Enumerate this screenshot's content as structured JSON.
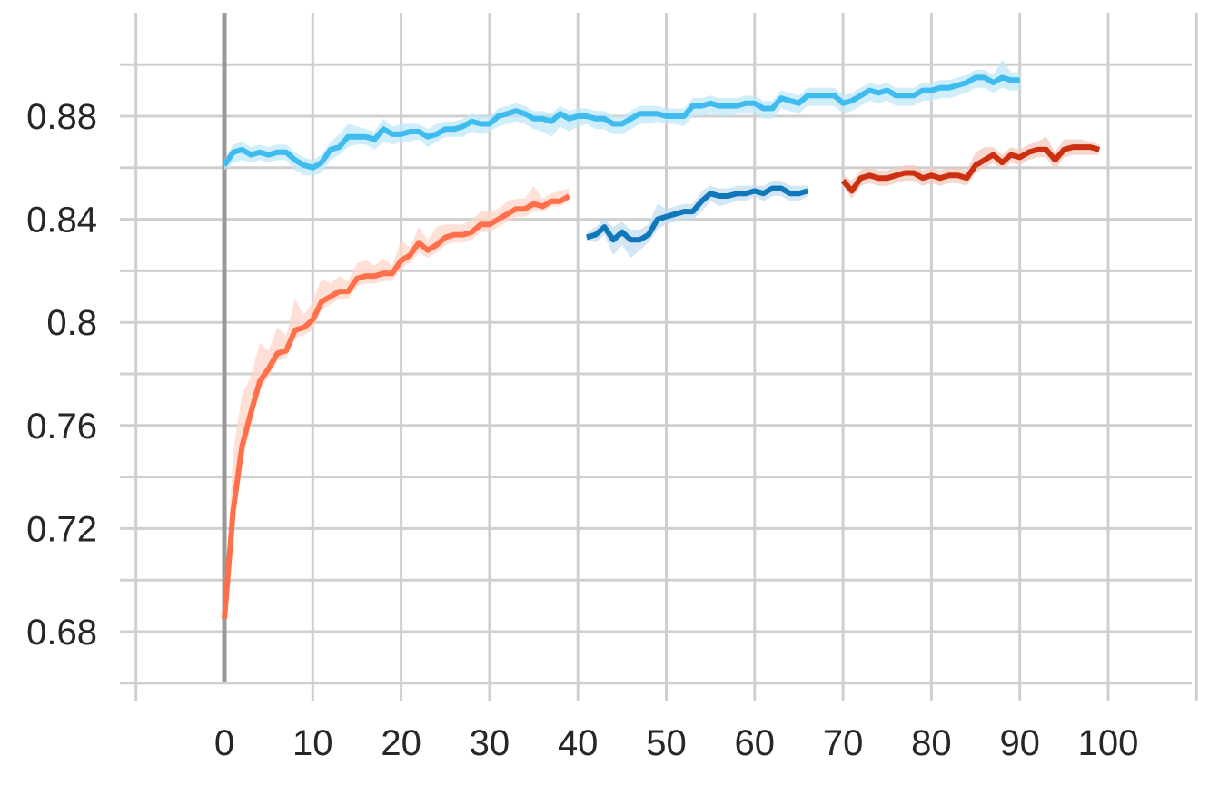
{
  "chart_data": {
    "type": "line",
    "title": "",
    "xlabel": "",
    "ylabel": "",
    "xlim": [
      -10,
      110
    ],
    "ylim": [
      0.664,
      0.906
    ],
    "x_ticks": [
      0,
      10,
      20,
      30,
      40,
      50,
      60,
      70,
      80,
      90,
      100
    ],
    "x_tick_labels": [
      "0",
      "10",
      "20",
      "30",
      "40",
      "50",
      "60",
      "70",
      "80",
      "90",
      "100"
    ],
    "y_ticks": [
      0.68,
      0.72,
      0.76,
      0.8,
      0.84,
      0.88
    ],
    "y_tick_labels": [
      "0.68",
      "0.72",
      "0.76",
      "0.8",
      "0.84",
      "0.88"
    ],
    "grid": true,
    "legend": "none",
    "colors": {
      "light_blue": "#3fbcef",
      "dark_blue": "#1177bb",
      "orange": "#ff6f4a",
      "dark_red": "#cc3010",
      "grid": "#cfcfcf",
      "zero_line": "#999999"
    },
    "series": [
      {
        "color": "#3fbcef",
        "band_color": "#bfe8f8",
        "x": [
          0,
          1,
          2,
          3,
          4,
          5,
          6,
          7,
          8,
          9,
          10,
          11,
          12,
          13,
          14,
          15,
          16,
          17,
          18,
          19,
          20,
          21,
          22,
          23,
          24,
          25,
          26,
          27,
          28,
          29,
          30,
          31,
          32,
          33,
          34,
          35,
          36,
          37,
          38,
          39,
          40,
          41,
          42,
          43,
          44,
          45,
          46,
          47,
          48,
          49,
          50,
          51,
          52,
          53,
          54,
          55,
          56,
          57,
          58,
          59,
          60,
          61,
          62,
          63,
          64,
          65,
          66,
          67,
          68,
          69,
          70,
          71,
          72,
          73,
          74,
          75,
          76,
          77,
          78,
          79,
          80,
          81,
          82,
          83,
          84,
          85,
          86,
          87,
          88,
          89,
          90
        ],
        "values": [
          0.861,
          0.866,
          0.867,
          0.865,
          0.866,
          0.865,
          0.866,
          0.866,
          0.863,
          0.861,
          0.86,
          0.862,
          0.867,
          0.868,
          0.872,
          0.872,
          0.872,
          0.871,
          0.875,
          0.873,
          0.873,
          0.874,
          0.874,
          0.872,
          0.873,
          0.875,
          0.875,
          0.876,
          0.878,
          0.877,
          0.877,
          0.88,
          0.881,
          0.882,
          0.881,
          0.879,
          0.879,
          0.878,
          0.881,
          0.879,
          0.88,
          0.88,
          0.879,
          0.879,
          0.877,
          0.877,
          0.879,
          0.881,
          0.881,
          0.881,
          0.88,
          0.88,
          0.88,
          0.884,
          0.884,
          0.885,
          0.884,
          0.884,
          0.884,
          0.885,
          0.885,
          0.883,
          0.883,
          0.887,
          0.886,
          0.885,
          0.888,
          0.888,
          0.888,
          0.888,
          0.885,
          0.886,
          0.888,
          0.89,
          0.889,
          0.89,
          0.888,
          0.888,
          0.888,
          0.89,
          0.89,
          0.891,
          0.891,
          0.892,
          0.893,
          0.895,
          0.895,
          0.893,
          0.895,
          0.894,
          0.894
        ],
        "band_low": [
          0.859,
          0.862,
          0.863,
          0.862,
          0.863,
          0.862,
          0.863,
          0.863,
          0.859,
          0.857,
          0.857,
          0.858,
          0.863,
          0.865,
          0.868,
          0.869,
          0.869,
          0.867,
          0.87,
          0.869,
          0.87,
          0.87,
          0.871,
          0.868,
          0.87,
          0.872,
          0.872,
          0.872,
          0.874,
          0.873,
          0.874,
          0.876,
          0.877,
          0.878,
          0.877,
          0.875,
          0.874,
          0.872,
          0.876,
          0.874,
          0.876,
          0.877,
          0.875,
          0.875,
          0.873,
          0.873,
          0.875,
          0.877,
          0.877,
          0.878,
          0.877,
          0.877,
          0.876,
          0.88,
          0.88,
          0.881,
          0.88,
          0.88,
          0.881,
          0.881,
          0.881,
          0.879,
          0.879,
          0.883,
          0.882,
          0.881,
          0.884,
          0.884,
          0.884,
          0.884,
          0.881,
          0.882,
          0.884,
          0.886,
          0.885,
          0.886,
          0.884,
          0.884,
          0.884,
          0.886,
          0.886,
          0.887,
          0.887,
          0.888,
          0.889,
          0.891,
          0.891,
          0.889,
          0.891,
          0.89,
          0.89
        ],
        "band_high": [
          0.863,
          0.869,
          0.87,
          0.868,
          0.869,
          0.868,
          0.869,
          0.869,
          0.866,
          0.864,
          0.863,
          0.865,
          0.87,
          0.873,
          0.877,
          0.876,
          0.875,
          0.874,
          0.879,
          0.876,
          0.877,
          0.877,
          0.877,
          0.875,
          0.877,
          0.878,
          0.878,
          0.879,
          0.881,
          0.88,
          0.88,
          0.883,
          0.884,
          0.885,
          0.884,
          0.882,
          0.882,
          0.881,
          0.884,
          0.882,
          0.883,
          0.883,
          0.882,
          0.882,
          0.88,
          0.88,
          0.882,
          0.884,
          0.884,
          0.884,
          0.883,
          0.883,
          0.883,
          0.887,
          0.887,
          0.888,
          0.887,
          0.887,
          0.887,
          0.888,
          0.888,
          0.886,
          0.886,
          0.89,
          0.889,
          0.888,
          0.891,
          0.891,
          0.891,
          0.891,
          0.888,
          0.889,
          0.891,
          0.893,
          0.892,
          0.893,
          0.891,
          0.891,
          0.891,
          0.893,
          0.893,
          0.894,
          0.894,
          0.895,
          0.896,
          0.898,
          0.898,
          0.896,
          0.902,
          0.897,
          0.897
        ]
      },
      {
        "color": "#1177bb",
        "band_color": "#c4def0",
        "x": [
          41,
          42,
          43,
          44,
          45,
          46,
          47,
          48,
          49,
          50,
          51,
          52,
          53,
          54,
          55,
          56,
          57,
          58,
          59,
          60,
          61,
          62,
          63,
          64,
          65,
          66
        ],
        "values": [
          0.833,
          0.834,
          0.837,
          0.832,
          0.835,
          0.832,
          0.832,
          0.834,
          0.84,
          0.841,
          0.842,
          0.843,
          0.843,
          0.847,
          0.85,
          0.849,
          0.849,
          0.85,
          0.85,
          0.851,
          0.85,
          0.852,
          0.852,
          0.85,
          0.85,
          0.851
        ],
        "band_low": [
          0.832,
          0.831,
          0.834,
          0.826,
          0.83,
          0.825,
          0.828,
          0.831,
          0.836,
          0.838,
          0.839,
          0.84,
          0.84,
          0.843,
          0.847,
          0.845,
          0.846,
          0.847,
          0.847,
          0.849,
          0.847,
          0.849,
          0.849,
          0.847,
          0.847,
          0.849
        ],
        "band_high": [
          0.835,
          0.837,
          0.84,
          0.837,
          0.839,
          0.836,
          0.836,
          0.838,
          0.846,
          0.844,
          0.845,
          0.846,
          0.846,
          0.851,
          0.853,
          0.852,
          0.852,
          0.853,
          0.853,
          0.853,
          0.853,
          0.855,
          0.855,
          0.853,
          0.853,
          0.853
        ]
      },
      {
        "color": "#ff6f4a",
        "band_color": "#ffd5c9",
        "x": [
          0,
          1,
          2,
          3,
          4,
          5,
          6,
          7,
          8,
          9,
          10,
          11,
          12,
          13,
          14,
          15,
          16,
          17,
          18,
          19,
          20,
          21,
          22,
          23,
          24,
          25,
          26,
          27,
          28,
          29,
          30,
          31,
          32,
          33,
          34,
          35,
          36,
          37,
          38,
          39
        ],
        "values": [
          0.685,
          0.727,
          0.752,
          0.765,
          0.777,
          0.782,
          0.788,
          0.789,
          0.797,
          0.798,
          0.801,
          0.808,
          0.81,
          0.812,
          0.812,
          0.817,
          0.818,
          0.818,
          0.819,
          0.819,
          0.824,
          0.826,
          0.831,
          0.828,
          0.83,
          0.833,
          0.834,
          0.834,
          0.835,
          0.838,
          0.838,
          0.84,
          0.842,
          0.844,
          0.844,
          0.846,
          0.845,
          0.847,
          0.847,
          0.849
        ],
        "band_low": [
          0.685,
          0.722,
          0.745,
          0.76,
          0.773,
          0.779,
          0.785,
          0.786,
          0.794,
          0.795,
          0.797,
          0.805,
          0.807,
          0.809,
          0.809,
          0.814,
          0.815,
          0.815,
          0.816,
          0.816,
          0.821,
          0.823,
          0.827,
          0.825,
          0.827,
          0.83,
          0.831,
          0.831,
          0.832,
          0.835,
          0.835,
          0.837,
          0.839,
          0.841,
          0.841,
          0.843,
          0.843,
          0.845,
          0.845,
          0.847
        ],
        "band_high": [
          0.69,
          0.75,
          0.772,
          0.779,
          0.792,
          0.789,
          0.798,
          0.795,
          0.809,
          0.803,
          0.808,
          0.817,
          0.815,
          0.818,
          0.816,
          0.823,
          0.824,
          0.822,
          0.825,
          0.822,
          0.832,
          0.829,
          0.837,
          0.832,
          0.837,
          0.838,
          0.838,
          0.838,
          0.84,
          0.843,
          0.843,
          0.844,
          0.847,
          0.848,
          0.848,
          0.853,
          0.848,
          0.85,
          0.851,
          0.852
        ]
      },
      {
        "color": "#cc3010",
        "band_color": "#f3c9bd",
        "x": [
          70,
          71,
          72,
          73,
          74,
          75,
          76,
          77,
          78,
          79,
          80,
          81,
          82,
          83,
          84,
          85,
          86,
          87,
          88,
          89,
          90,
          91,
          92,
          93,
          94,
          95,
          96,
          97,
          98,
          99
        ],
        "values": [
          0.855,
          0.851,
          0.856,
          0.857,
          0.856,
          0.856,
          0.857,
          0.858,
          0.858,
          0.856,
          0.857,
          0.856,
          0.857,
          0.857,
          0.856,
          0.861,
          0.863,
          0.865,
          0.862,
          0.865,
          0.864,
          0.866,
          0.867,
          0.867,
          0.863,
          0.867,
          0.868,
          0.868,
          0.868,
          0.867
        ],
        "band_low": [
          0.853,
          0.848,
          0.853,
          0.854,
          0.853,
          0.853,
          0.854,
          0.855,
          0.855,
          0.853,
          0.854,
          0.853,
          0.854,
          0.854,
          0.853,
          0.858,
          0.86,
          0.862,
          0.859,
          0.862,
          0.861,
          0.863,
          0.864,
          0.864,
          0.859,
          0.864,
          0.865,
          0.865,
          0.865,
          0.865
        ],
        "band_high": [
          0.857,
          0.855,
          0.859,
          0.86,
          0.859,
          0.859,
          0.86,
          0.861,
          0.861,
          0.859,
          0.86,
          0.859,
          0.86,
          0.86,
          0.859,
          0.866,
          0.868,
          0.868,
          0.865,
          0.868,
          0.867,
          0.869,
          0.87,
          0.872,
          0.866,
          0.871,
          0.871,
          0.871,
          0.87,
          0.869
        ]
      }
    ]
  }
}
